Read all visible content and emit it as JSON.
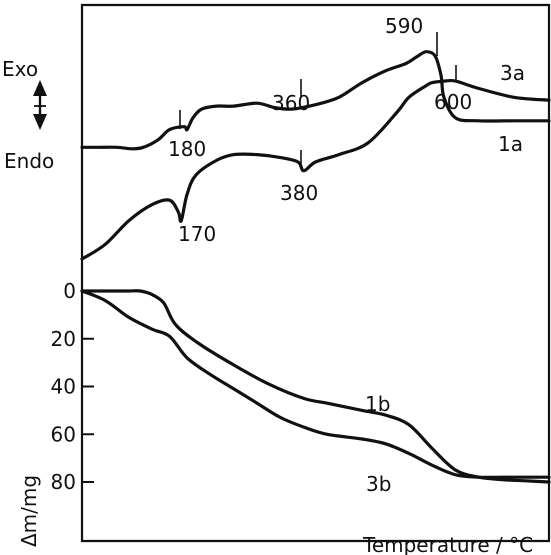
{
  "chart_data": [
    {
      "type": "line",
      "panel": "DTA",
      "xlabel": "",
      "ylabel": "",
      "direction_labels": {
        "top": "Exo",
        "bottom": "Endo"
      },
      "x_range": [
        0,
        800
      ],
      "series": [
        {
          "name": "3a",
          "x": [
            0,
            30,
            60,
            85,
            105,
            130,
            150,
            175,
            180,
            190,
            205,
            230,
            260,
            300,
            330,
            360,
            400,
            440,
            480,
            520,
            555,
            575,
            590,
            605,
            615,
            620,
            640,
            680,
            740,
            800
          ],
          "y": [
            0.76,
            0.76,
            0.76,
            0.75,
            0.76,
            0.81,
            0.88,
            0.9,
            0.88,
            0.96,
            1.02,
            1.04,
            1.04,
            1.06,
            1.03,
            1.02,
            1.05,
            1.1,
            1.2,
            1.28,
            1.33,
            1.38,
            1.41,
            1.38,
            1.25,
            1.1,
            0.96,
            0.94,
            0.94,
            0.94
          ]
        },
        {
          "name": "1a",
          "x": [
            0,
            40,
            80,
            120,
            150,
            165,
            170,
            180,
            195,
            230,
            260,
            300,
            340,
            370,
            380,
            400,
            440,
            490,
            540,
            560,
            590,
            600,
            620,
            640,
            680,
            740,
            800
          ],
          "y": [
            0.0,
            0.1,
            0.26,
            0.37,
            0.4,
            0.32,
            0.26,
            0.44,
            0.57,
            0.67,
            0.71,
            0.71,
            0.69,
            0.66,
            0.6,
            0.66,
            0.71,
            0.79,
            1.0,
            1.1,
            1.18,
            1.2,
            1.21,
            1.21,
            1.16,
            1.1,
            1.08
          ]
        }
      ],
      "annotations": [
        {
          "text": "590",
          "x": 590,
          "marker": true
        },
        {
          "text": "600",
          "x": 600,
          "marker": true
        },
        {
          "text": "360",
          "x": 360,
          "marker": true
        },
        {
          "text": "180",
          "x": 180,
          "marker": true
        },
        {
          "text": "380",
          "x": 380,
          "marker": true
        },
        {
          "text": "170",
          "x": 170,
          "marker": false
        },
        {
          "text": "3a",
          "x": 740
        },
        {
          "text": "1a",
          "x": 740
        }
      ]
    },
    {
      "type": "line",
      "panel": "TG",
      "xlabel": "Temperature / °C",
      "ylabel": "Δm/mg",
      "x_range": [
        0,
        800
      ],
      "ylim": [
        0,
        80
      ],
      "y_inverted": true,
      "yticks": [
        "0",
        "20",
        "40",
        "60",
        "80"
      ],
      "series": [
        {
          "name": "1b",
          "x": [
            0,
            40,
            80,
            100,
            120,
            140,
            160,
            200,
            260,
            320,
            380,
            420,
            480,
            520,
            560,
            600,
            640,
            680,
            720,
            760,
            800
          ],
          "y": [
            0,
            0,
            0,
            0,
            1.5,
            5,
            14,
            22,
            31,
            39,
            45,
            47,
            50,
            52,
            56,
            66,
            75,
            78,
            79,
            79.5,
            80
          ]
        },
        {
          "name": "3b",
          "x": [
            0,
            40,
            80,
            120,
            150,
            180,
            220,
            260,
            300,
            340,
            380,
            420,
            480,
            520,
            560,
            600,
            640,
            680,
            720,
            760,
            800
          ],
          "y": [
            0,
            4,
            11,
            16,
            19,
            28,
            35,
            41,
            47,
            53,
            57,
            60,
            62,
            64,
            68,
            73,
            77,
            78,
            78,
            78,
            78
          ]
        }
      ],
      "annotations": [
        {
          "text": "1b",
          "x": 400
        },
        {
          "text": "3b",
          "x": 400
        }
      ]
    }
  ],
  "labels": {
    "exo": "Exo",
    "endo": "Endo",
    "a590": "590",
    "a600": "600",
    "a360": "360",
    "a180": "180",
    "a380": "380",
    "a170": "170",
    "s3a": "3a",
    "s1a": "1a",
    "s1b": "1b",
    "s3b": "3b",
    "xlabel": "Temperature / °C",
    "ylabel": "Δm/mg",
    "yticks": [
      "0",
      "20",
      "40",
      "60",
      "80"
    ]
  }
}
